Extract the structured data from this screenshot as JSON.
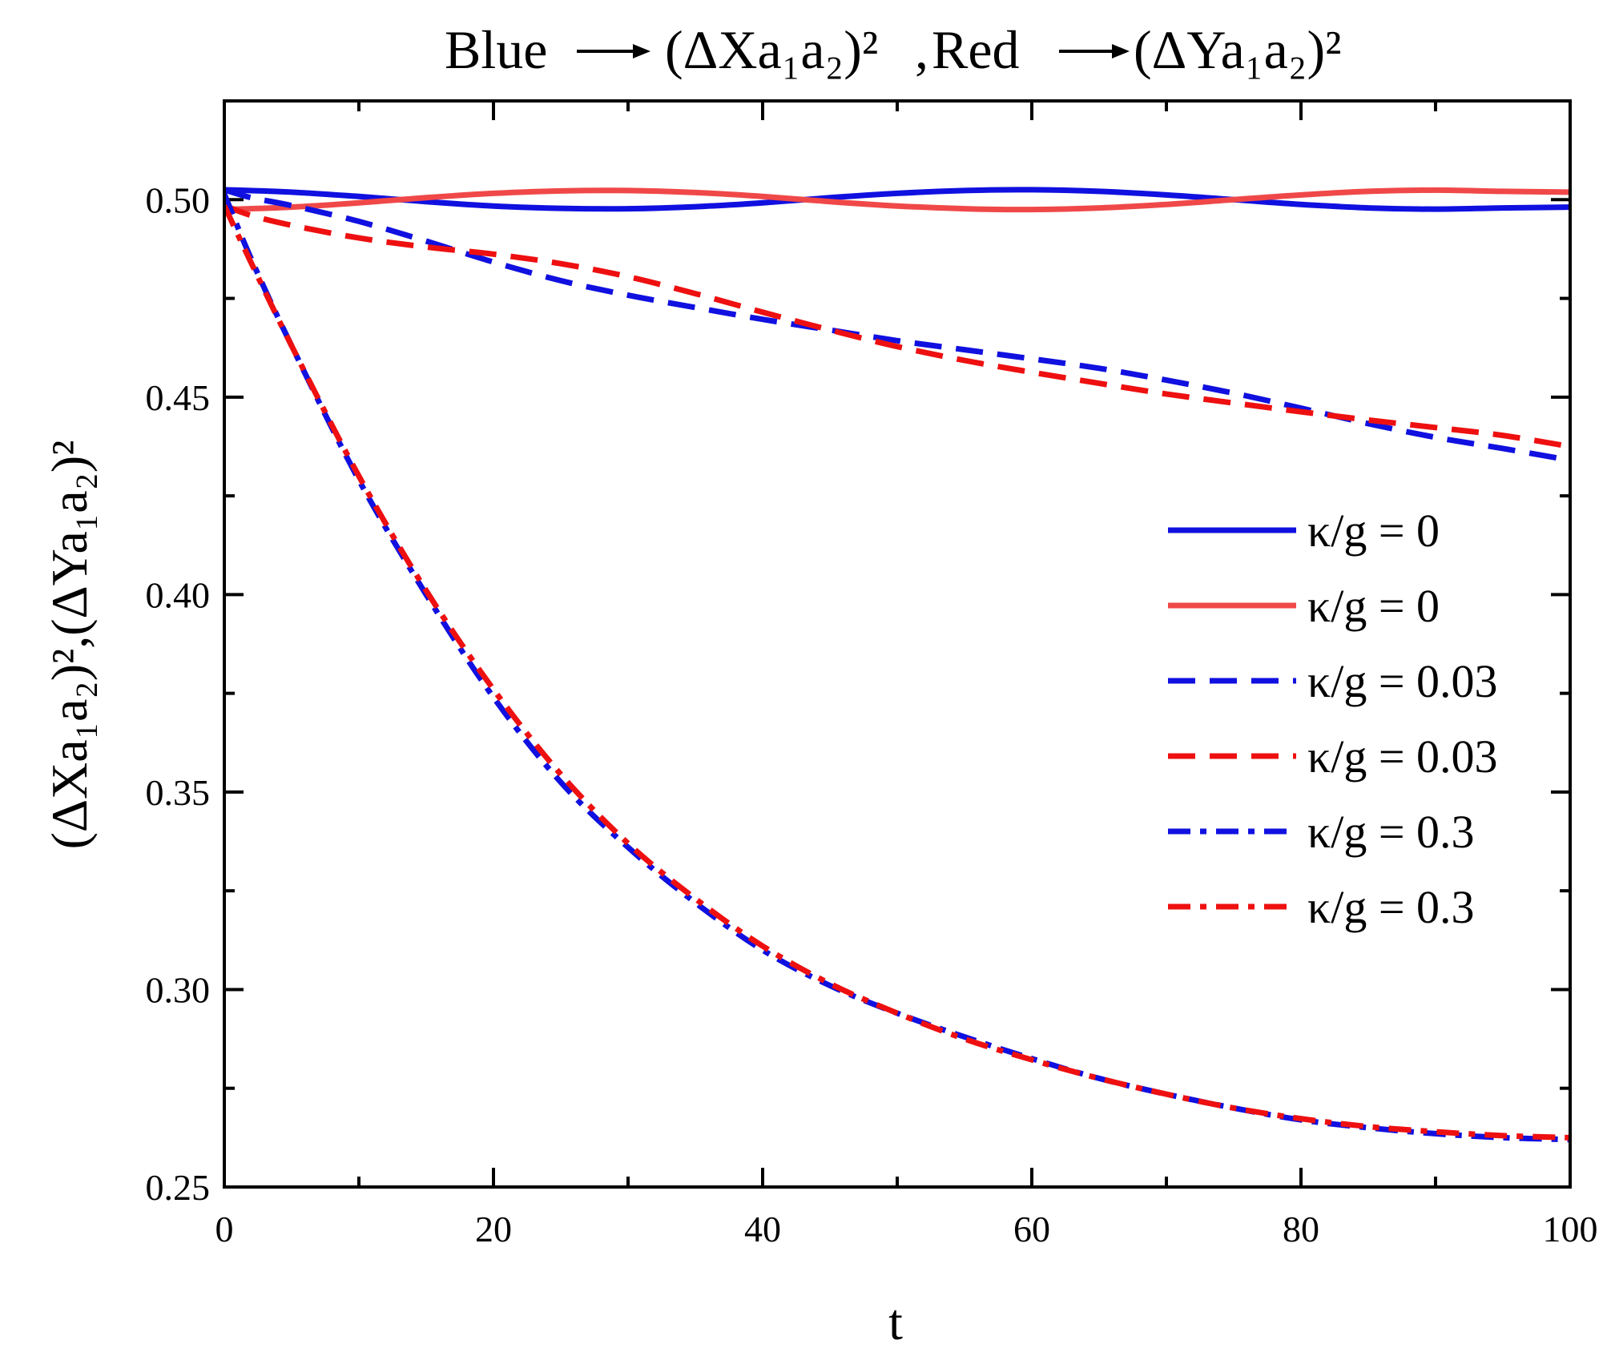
{
  "chart_data": {
    "type": "line",
    "title": {
      "blue_label": "Blue",
      "blue_expr": "(ΔXa₁a₂)²",
      "separator": ",",
      "red_label": "Red",
      "red_expr": "(ΔYa₁a₂)²"
    },
    "xlabel": "t",
    "ylabel": "(ΔXa₁a₂)²,(ΔYa₁a₂)²",
    "xlim": [
      0,
      100
    ],
    "ylim": [
      0.25,
      0.525
    ],
    "x_ticks": [
      0,
      20,
      40,
      60,
      80,
      100
    ],
    "x_tick_labels": [
      "0",
      "20",
      "40",
      "60",
      "80",
      "100"
    ],
    "x_minor_ticks": [
      10,
      30,
      50,
      70,
      90
    ],
    "y_ticks": [
      0.25,
      0.3,
      0.35,
      0.4,
      0.45,
      0.5
    ],
    "y_tick_labels": [
      "0.25",
      "0.30",
      "0.35",
      "0.40",
      "0.45",
      "0.50"
    ],
    "y_minor_ticks": [
      0.275,
      0.325,
      0.375,
      0.425,
      0.475
    ],
    "grid": false,
    "legend_position": "right",
    "colors": {
      "blue": "#1010e0",
      "red_light": "#f04848",
      "red": "#ee1010"
    },
    "series": [
      {
        "name": "κ/g = 0",
        "color": "#1010e0",
        "style": "solid",
        "x": [
          0,
          5,
          10,
          15,
          20,
          25,
          30,
          35,
          40,
          45,
          50,
          55,
          60,
          65,
          70,
          75,
          80,
          85,
          90,
          95,
          100
        ],
        "values": [
          0.5025,
          0.5019,
          0.5008,
          0.4995,
          0.4984,
          0.4978,
          0.4977,
          0.4982,
          0.4992,
          0.5005,
          0.5016,
          0.5023,
          0.5025,
          0.5021,
          0.5012,
          0.5,
          0.4988,
          0.4979,
          0.4976,
          0.4979,
          0.4981
        ]
      },
      {
        "name": "κ/g = 0",
        "color": "#f04848",
        "style": "solid",
        "x": [
          0,
          5,
          10,
          15,
          20,
          25,
          30,
          35,
          40,
          45,
          50,
          55,
          60,
          65,
          70,
          75,
          80,
          85,
          90,
          95,
          100
        ],
        "values": [
          0.4975,
          0.4981,
          0.4992,
          0.5005,
          0.5016,
          0.5022,
          0.5023,
          0.5018,
          0.5008,
          0.4995,
          0.4984,
          0.4977,
          0.4975,
          0.4979,
          0.4988,
          0.5,
          0.5012,
          0.5021,
          0.5024,
          0.5021,
          0.5019
        ]
      },
      {
        "name": "κ/g = 0.03",
        "color": "#1010e0",
        "style": "dash",
        "x": [
          0,
          2,
          5,
          10,
          15,
          20,
          25,
          30,
          35,
          40,
          45,
          50,
          55,
          60,
          65,
          70,
          75,
          80,
          85,
          90,
          95,
          100
        ],
        "values": [
          0.5025,
          0.5005,
          0.4985,
          0.4945,
          0.4895,
          0.4842,
          0.4795,
          0.4758,
          0.4727,
          0.4697,
          0.467,
          0.4643,
          0.462,
          0.4597,
          0.4573,
          0.4543,
          0.451,
          0.4472,
          0.4433,
          0.4398,
          0.437,
          0.434
        ]
      },
      {
        "name": "κ/g = 0.03",
        "color": "#ee1010",
        "style": "dash",
        "x": [
          0,
          2,
          5,
          10,
          15,
          20,
          25,
          30,
          35,
          40,
          45,
          50,
          55,
          60,
          65,
          70,
          75,
          80,
          85,
          90,
          95,
          100
        ],
        "values": [
          0.4985,
          0.496,
          0.4935,
          0.4903,
          0.488,
          0.4862,
          0.4838,
          0.4805,
          0.4762,
          0.4715,
          0.467,
          0.4628,
          0.4593,
          0.4563,
          0.4535,
          0.4508,
          0.4485,
          0.4463,
          0.4442,
          0.4423,
          0.4403,
          0.4375
        ]
      },
      {
        "name": "κ/g = 0.3",
        "color": "#1010e0",
        "style": "dashdot",
        "x": [
          0,
          2,
          5,
          10,
          15,
          20,
          25,
          30,
          35,
          40,
          45,
          50,
          55,
          60,
          65,
          70,
          75,
          80,
          85,
          90,
          95,
          100
        ],
        "values": [
          0.5015,
          0.485,
          0.463,
          0.429,
          0.4,
          0.374,
          0.3525,
          0.336,
          0.322,
          0.31,
          0.301,
          0.294,
          0.288,
          0.2825,
          0.2775,
          0.2735,
          0.27,
          0.267,
          0.265,
          0.2635,
          0.2625,
          0.262
        ]
      },
      {
        "name": "κ/g = 0.3",
        "color": "#ee1010",
        "style": "dashdot",
        "x": [
          0,
          2,
          5,
          10,
          15,
          20,
          25,
          30,
          35,
          40,
          45,
          50,
          55,
          60,
          65,
          70,
          75,
          80,
          85,
          90,
          95,
          100
        ],
        "values": [
          0.4985,
          0.484,
          0.463,
          0.43,
          0.401,
          0.376,
          0.3545,
          0.337,
          0.323,
          0.311,
          0.3015,
          0.294,
          0.2875,
          0.2822,
          0.2775,
          0.2735,
          0.27,
          0.2673,
          0.2653,
          0.264,
          0.263,
          0.2625
        ]
      }
    ]
  }
}
